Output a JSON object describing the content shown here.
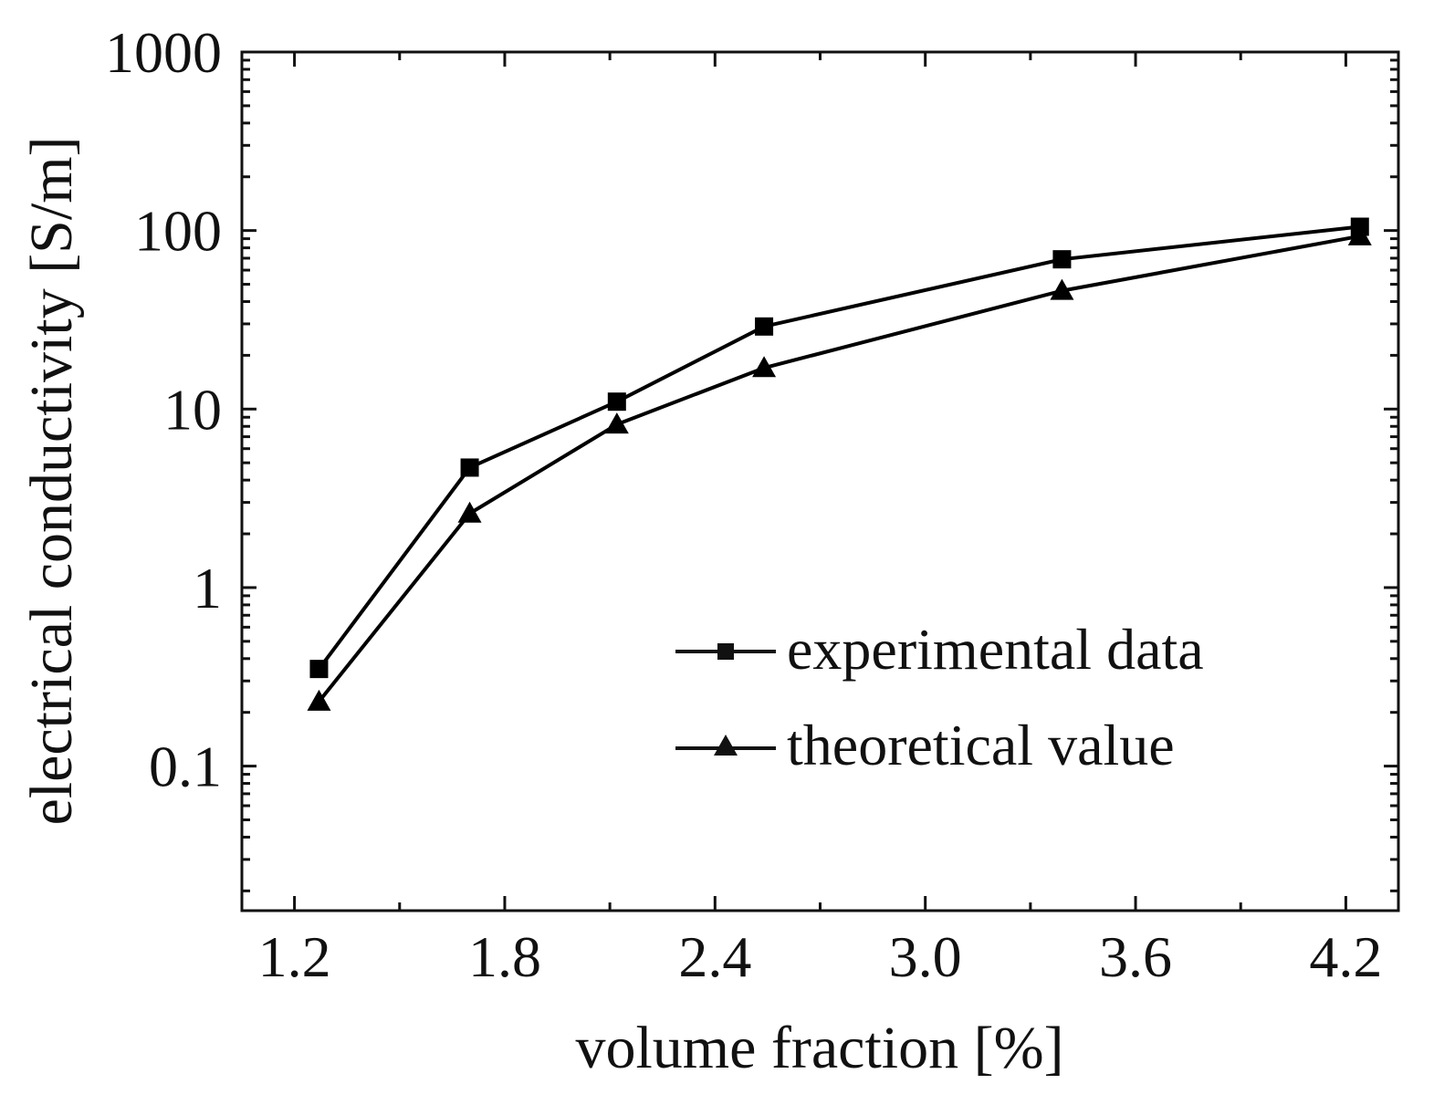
{
  "chart_data": {
    "type": "line",
    "title": "",
    "xlabel": "volume fraction [%]",
    "ylabel": "electrical conductivity [S/m]",
    "xlim": [
      1.05,
      4.35
    ],
    "ylim": [
      0.0155,
      1000
    ],
    "yscale": "log",
    "xticks": [
      1.2,
      1.8,
      2.4,
      3.0,
      3.6,
      4.2
    ],
    "xtick_labels": [
      "1.2",
      "1.8",
      "2.4",
      "3.0",
      "3.6",
      "4.2"
    ],
    "yticks": [
      0.1,
      1,
      10,
      100,
      1000
    ],
    "ytick_labels": [
      "0.1",
      "1",
      "10",
      "100",
      "1000"
    ],
    "legend_position": "lower-right",
    "series": [
      {
        "name": "experimental data",
        "marker": "square",
        "color": "#000000",
        "x": [
          1.27,
          1.7,
          2.12,
          2.54,
          3.39,
          4.24
        ],
        "y": [
          0.35,
          4.7,
          11,
          29,
          69,
          105
        ]
      },
      {
        "name": "theoretical value",
        "marker": "triangle",
        "color": "#000000",
        "x": [
          1.27,
          1.7,
          2.12,
          2.54,
          3.39,
          4.24
        ],
        "y": [
          0.23,
          2.6,
          8.2,
          17,
          46,
          93
        ]
      }
    ]
  }
}
